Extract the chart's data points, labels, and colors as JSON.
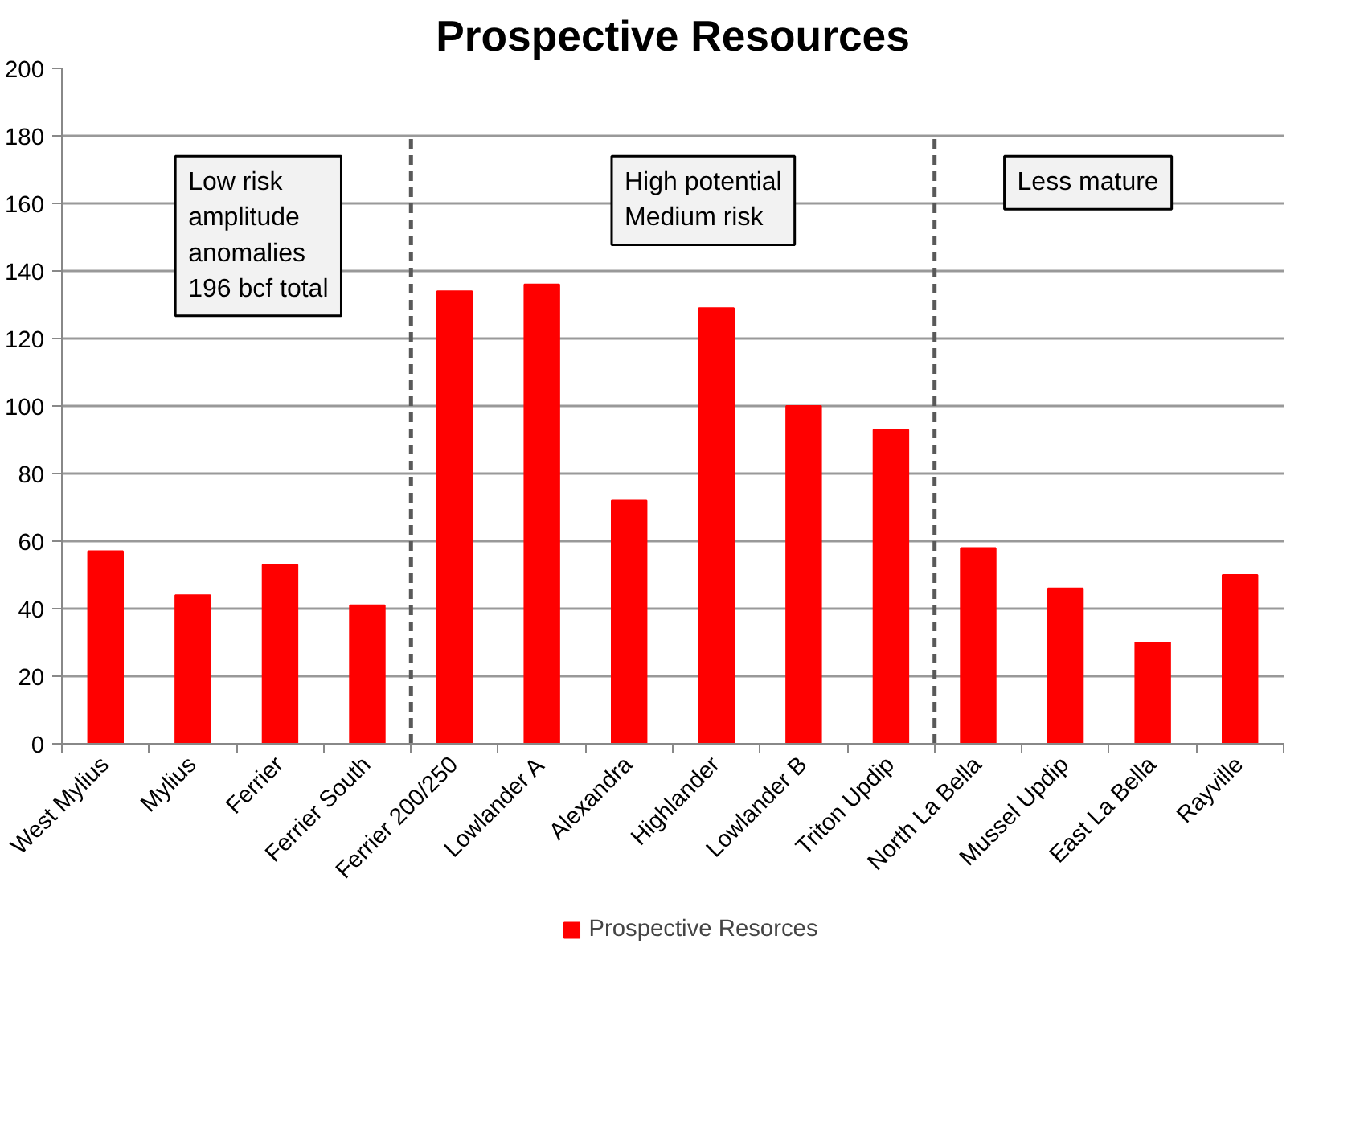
{
  "chart_data": {
    "type": "bar",
    "title": "Prospective Resources",
    "categories": [
      "West Mylius",
      "Mylius",
      "Ferrier",
      "Ferrier South",
      "Ferrier 200/250",
      "Lowlander A",
      "Alexandra",
      "Highlander",
      "Lowlander B",
      "Triton Updip",
      "North La Bella",
      "Mussel Updip",
      "East La Bella",
      "Rayville"
    ],
    "series": [
      {
        "name": "Prospective Resorces",
        "color": "#ff0000",
        "values": [
          57,
          44,
          53,
          41,
          134,
          136,
          72,
          129,
          100,
          93,
          58,
          46,
          30,
          50
        ]
      }
    ],
    "ylim": [
      0,
      200
    ],
    "yticks": [
      0,
      20,
      40,
      60,
      80,
      100,
      120,
      140,
      160,
      180,
      200
    ],
    "grid": "y",
    "legend": "bottom",
    "annotations": [
      "Low risk\namplitude\nanomalies\n196 bcf total",
      "High potential\nMedium risk",
      "Less mature"
    ]
  }
}
